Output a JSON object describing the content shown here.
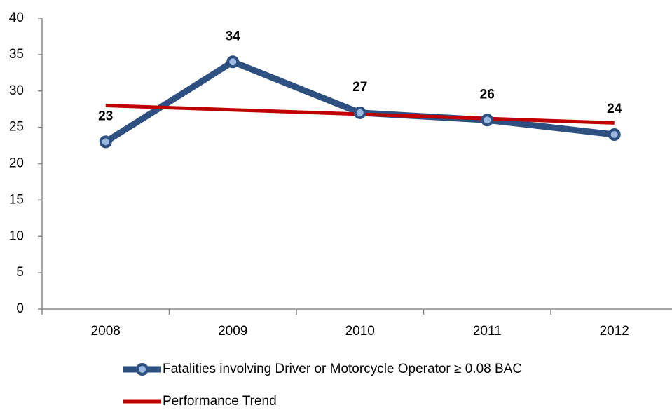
{
  "chart_data": {
    "type": "line",
    "categories": [
      "2008",
      "2009",
      "2010",
      "2011",
      "2012"
    ],
    "series": [
      {
        "name": "Fatalities involving Driver or Motorcycle Operator ≥ 0.08 BAC",
        "color": "#2e5080",
        "values": [
          23,
          34,
          27,
          26,
          24
        ],
        "markers": true,
        "data_labels": true
      },
      {
        "name": "Performance Trend",
        "color": "#c00000",
        "values": [
          28,
          27.4,
          26.8,
          26.2,
          25.6
        ],
        "markers": false,
        "data_labels": false
      }
    ],
    "ylim": [
      0,
      40
    ],
    "yticks": [
      0,
      5,
      10,
      15,
      20,
      25,
      30,
      35,
      40
    ],
    "grid": false,
    "legend": "bottom"
  }
}
